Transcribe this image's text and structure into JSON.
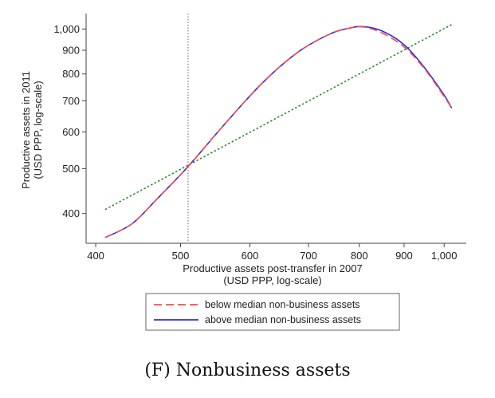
{
  "chart_data": {
    "type": "line",
    "x_scale": "log",
    "y_scale": "log",
    "xlabel": [
      "Productive assets post-transfer in 2007",
      "(USD PPP, log-scale)"
    ],
    "ylabel": [
      "Productive assets in 2011",
      "(USD PPP, log-scale)"
    ],
    "xlim": [
      390,
      1060
    ],
    "ylim": [
      345,
      1080
    ],
    "xticks": [
      {
        "value": 400,
        "label": "400"
      },
      {
        "value": 500,
        "label": "500"
      },
      {
        "value": 600,
        "label": "600"
      },
      {
        "value": 700,
        "label": "700"
      },
      {
        "value": 800,
        "label": "800"
      },
      {
        "value": 900,
        "label": "900"
      },
      {
        "value": 1000,
        "label": "1,000"
      }
    ],
    "yticks": [
      {
        "value": 400,
        "label": "400"
      },
      {
        "value": 500,
        "label": "500"
      },
      {
        "value": 600,
        "label": "600"
      },
      {
        "value": 700,
        "label": "700"
      },
      {
        "value": 800,
        "label": "800"
      },
      {
        "value": 900,
        "label": "900"
      },
      {
        "value": 1000,
        "label": "1,000"
      }
    ],
    "vline": {
      "x": 510,
      "style": "dotted",
      "color": "#888888"
    },
    "grid": false,
    "legend_position": "bottom",
    "series": [
      {
        "name": "below median non-business assets",
        "style": "dashed",
        "color": "#ff4a4a",
        "x": [
          410,
          440,
          470,
          510,
          560,
          620,
          680,
          740,
          780,
          810,
          850,
          900,
          950,
          1000,
          1020
        ],
        "y": [
          355,
          380,
          430,
          505,
          620,
          765,
          890,
          975,
          1005,
          1010,
          980,
          915,
          820,
          715,
          675
        ]
      },
      {
        "name": "above median non-business assets",
        "style": "solid",
        "color": "#2d2de0",
        "x": [
          410,
          440,
          470,
          510,
          560,
          620,
          680,
          740,
          780,
          810,
          850,
          900,
          950,
          1000,
          1020
        ],
        "y": [
          355,
          380,
          430,
          505,
          620,
          765,
          890,
          975,
          1005,
          1012,
          990,
          925,
          825,
          720,
          675
        ]
      },
      {
        "name": "",
        "style": "dotted",
        "color": "#2e8b2e",
        "x": [
          410,
          1020
        ],
        "y": [
          408,
          1022
        ]
      }
    ]
  },
  "caption": {
    "label": "(F)",
    "text": "Nonbusiness assets"
  }
}
